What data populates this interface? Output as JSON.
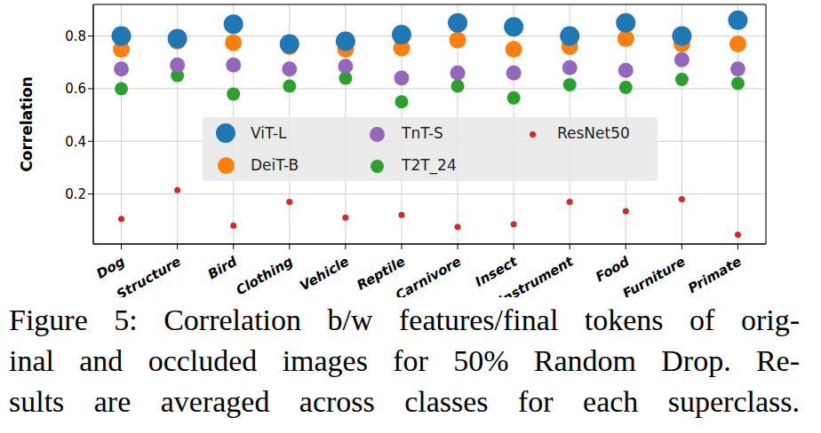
{
  "chart_data": {
    "type": "scatter",
    "y_label": "Correlation",
    "categories": [
      "Dog",
      "Structure",
      "Bird",
      "Clothing",
      "Vehicle",
      "Reptile",
      "Carnivore",
      "Insect",
      "Instrument",
      "Food",
      "Furniture",
      "Primate"
    ],
    "series": [
      {
        "name": "ViT-L",
        "color": "#1f77b4",
        "marker": "circle",
        "values": [
          0.8,
          0.79,
          0.845,
          0.77,
          0.78,
          0.805,
          0.85,
          0.835,
          0.8,
          0.85,
          0.8,
          0.86
        ]
      },
      {
        "name": "DeiT-B",
        "color": "#ff7f0e",
        "marker": "circle",
        "values": [
          0.75,
          0.78,
          0.775,
          0.76,
          0.75,
          0.755,
          0.785,
          0.75,
          0.76,
          0.79,
          0.77,
          0.77
        ]
      },
      {
        "name": "TnT-S",
        "color": "#9467bd",
        "marker": "circle",
        "values": [
          0.675,
          0.69,
          0.69,
          0.675,
          0.685,
          0.64,
          0.66,
          0.66,
          0.68,
          0.67,
          0.71,
          0.675
        ]
      },
      {
        "name": "T2T_24",
        "color": "#2ca02c",
        "marker": "circle",
        "values": [
          0.6,
          0.65,
          0.58,
          0.61,
          0.64,
          0.55,
          0.61,
          0.565,
          0.615,
          0.605,
          0.635,
          0.62
        ]
      },
      {
        "name": "ResNet50",
        "color": "#d62728",
        "marker": "circle",
        "values": [
          0.105,
          0.215,
          0.08,
          0.17,
          0.11,
          0.12,
          0.075,
          0.085,
          0.17,
          0.135,
          0.18,
          0.045
        ]
      }
    ],
    "ylim": [
      0.01,
      0.92
    ],
    "yticks": [
      0.2,
      0.4,
      0.6,
      0.8
    ],
    "grid": true,
    "legend": "center"
  },
  "caption": [
    "Figure 5: Correlation b/w features/final tokens of orig-",
    "inal and occluded images for 50% Random Drop. Re-",
    "sults are averaged across classes for each superclass."
  ]
}
